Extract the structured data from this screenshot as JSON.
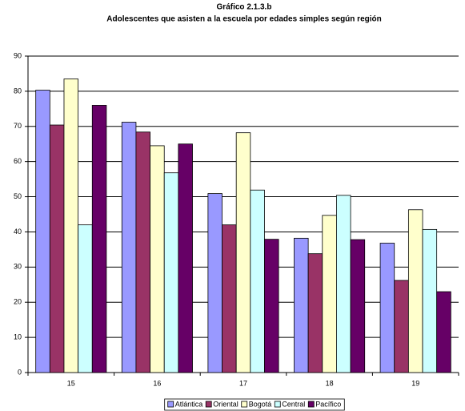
{
  "chart_data": {
    "type": "bar",
    "title": "Gráfico 2.1.3.b",
    "subtitle": "Adolescentes que asisten a la escuela por edades simples según región",
    "categories": [
      "15",
      "16",
      "17",
      "18",
      "19"
    ],
    "series": [
      {
        "name": "Atlántica",
        "color": "#9999ff",
        "values": [
          80.3,
          71.2,
          50.9,
          38.2,
          36.8
        ]
      },
      {
        "name": "Oriental",
        "color": "#993366",
        "values": [
          70.4,
          68.4,
          42.0,
          33.8,
          26.2
        ]
      },
      {
        "name": "Bogotá",
        "color": "#ffffcc",
        "values": [
          83.5,
          64.5,
          68.2,
          44.7,
          46.3
        ]
      },
      {
        "name": "Central",
        "color": "#ccffff",
        "values": [
          42.0,
          56.8,
          51.9,
          50.4,
          40.7
        ]
      },
      {
        "name": "Pacífico",
        "color": "#660066",
        "values": [
          76.0,
          65.0,
          37.9,
          37.8,
          23.0
        ]
      }
    ],
    "ylim": [
      0,
      90
    ],
    "yticks": [
      0,
      10,
      20,
      30,
      40,
      50,
      60,
      70,
      80,
      90
    ],
    "grid": true
  }
}
